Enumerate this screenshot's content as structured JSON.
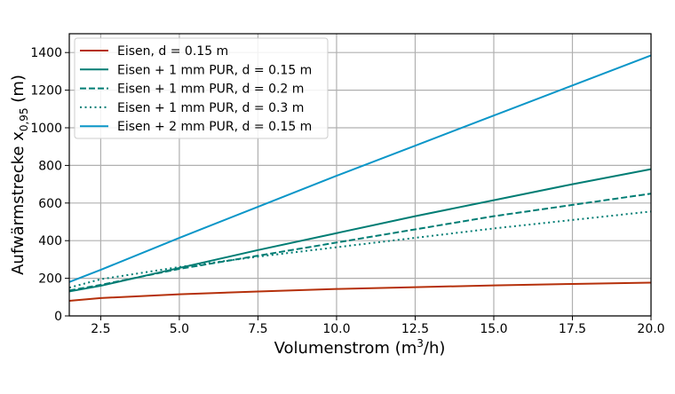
{
  "chart_data": {
    "type": "line",
    "title": "",
    "xlabel": "Volumenstrom (m³/h)",
    "xlabel_parts": {
      "base": "Volumenstrom (m",
      "sup": "3",
      "tail": "/h)"
    },
    "ylabel": "Aufwärmstrecke x0,95 (m)",
    "ylabel_parts": {
      "base": "Aufwärmstrecke x",
      "sub": "0,95",
      "tail": " (m)"
    },
    "xlim": [
      1.5,
      20
    ],
    "ylim": [
      0,
      1500
    ],
    "xticks": [
      2.5,
      5.0,
      7.5,
      10.0,
      12.5,
      15.0,
      17.5,
      20.0
    ],
    "xtick_labels": [
      "2.5",
      "5.0",
      "7.5",
      "10.0",
      "12.5",
      "15.0",
      "17.5",
      "20.0"
    ],
    "yticks": [
      0,
      200,
      400,
      600,
      800,
      1000,
      1200,
      1400
    ],
    "ytick_labels": [
      "0",
      "200",
      "400",
      "600",
      "800",
      "1000",
      "1200",
      "1400"
    ],
    "grid": true,
    "legend_placement": "top-left",
    "x": [
      1.5,
      2.5,
      5,
      7.5,
      10,
      12.5,
      15,
      17.5,
      20
    ],
    "series": [
      {
        "name": "Eisen, d = 0.15 m",
        "color": "#b5300b",
        "style": "solid",
        "values": [
          80,
          95,
          115,
          130,
          143,
          153,
          162,
          170,
          177
        ]
      },
      {
        "name": "Eisen + 1 mm PUR, d = 0.15 m",
        "color": "#007d74",
        "style": "solid",
        "values": [
          130,
          160,
          255,
          350,
          440,
          530,
          615,
          700,
          780
        ]
      },
      {
        "name": "Eisen + 1 mm PUR, d = 0.2 m",
        "color": "#007d74",
        "style": "dashed",
        "values": [
          135,
          165,
          250,
          320,
          390,
          460,
          530,
          590,
          650
        ]
      },
      {
        "name": "Eisen + 1 mm PUR, d = 0.3 m",
        "color": "#007d74",
        "style": "dotted",
        "values": [
          150,
          195,
          260,
          315,
          365,
          415,
          465,
          510,
          555
        ]
      },
      {
        "name": "Eisen + 2 mm PUR, d = 0.15 m",
        "color": "#0a96c8",
        "style": "solid",
        "values": [
          180,
          245,
          415,
          580,
          745,
          905,
          1065,
          1225,
          1385
        ]
      }
    ]
  }
}
